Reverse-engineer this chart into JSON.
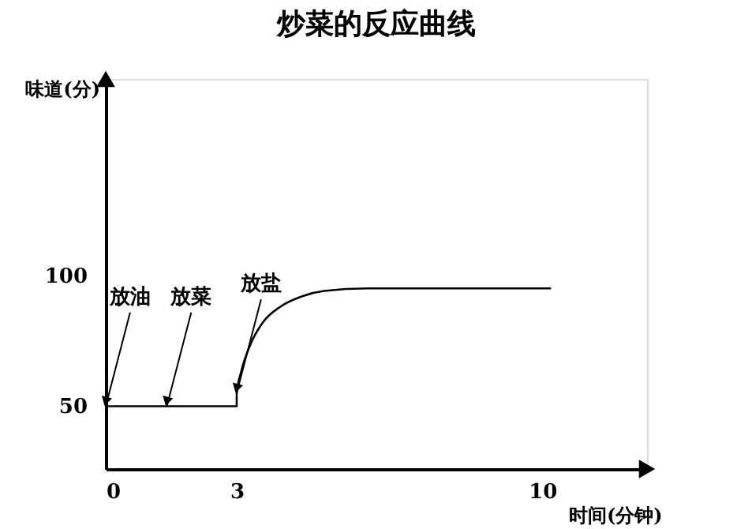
{
  "chart_data": {
    "type": "line",
    "title": "炒菜的反应曲线",
    "xlabel": "时间(分钟)",
    "ylabel": "味道(分)",
    "x": [
      0,
      3,
      3,
      3.1,
      3.3,
      3.6,
      4.0,
      4.5,
      5.0,
      6.0,
      10.2
    ],
    "series": [
      {
        "color": "#000000",
        "values": [
          50,
          50,
          55,
          63,
          73,
          82,
          88,
          92,
          94,
          95,
          95
        ]
      }
    ],
    "xlim": [
      0,
      12.4
    ],
    "ylim": [
      26,
      175
    ],
    "xticks": [
      0,
      3,
      10
    ],
    "yticks": [
      50,
      100
    ],
    "annotations": [
      {
        "text": "放油",
        "x": 0,
        "y": 50
      },
      {
        "text": "放菜",
        "x": 1.4,
        "y": 50
      },
      {
        "text": "放盐",
        "x": 3,
        "y": 55
      }
    ],
    "grid": false,
    "marker": "none",
    "line_style": "solid"
  }
}
